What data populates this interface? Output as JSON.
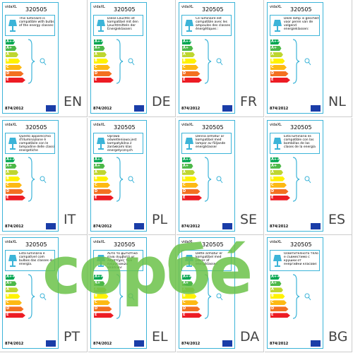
{
  "brand": "vidaXL",
  "model": "320505",
  "regulation": "874/2012",
  "classes": [
    "A++",
    "A+",
    "A",
    "B",
    "C",
    "D",
    "E"
  ],
  "labels": [
    {
      "lang": "EN",
      "text": "This luminaire is compatible with bulbs of the energy classes:"
    },
    {
      "lang": "DE",
      "text": "Diese Leuchte ist kompatibel mit den Leuchtmitteln der Energieklassen:"
    },
    {
      "lang": "FR",
      "text": "Ce luminaire est compatible avec les ampoules des classes énergétiques :"
    },
    {
      "lang": "NL",
      "text": "Deze lamp is geschikt voor peren van de volgend energieklassen:"
    },
    {
      "lang": "IT",
      "text": "Questo apparecchio d'illuminazione è compatibile con le lampadine delle classi energetiche"
    },
    {
      "lang": "PL",
      "text": "Oprawa oświetleniowa jest kompatybilna z żarówkami klas energetycznych"
    },
    {
      "lang": "SE",
      "text": "Denna armatur är kompatibel med lampor av följande energiklasser"
    },
    {
      "lang": "ES",
      "text": "Esta luminaria es compatible con las bombillas de las clases de la energía"
    },
    {
      "lang": "PT",
      "text": "Esta luminária é compatível com bulbos das classes de energia."
    },
    {
      "lang": "EL",
      "text": "Αυτό το φωτιστικό είναι συμβατό με λαμπτήρες των ενεργειακών κλάσεων:"
    },
    {
      "lang": "DA",
      "text": "Dette armatur er kompatibel med pærer af energiklasser:"
    },
    {
      "lang": "BG",
      "text": "Осветителното тяло е съвместимо с крушки от енергийни класове:"
    }
  ],
  "watermark": "сорбé"
}
